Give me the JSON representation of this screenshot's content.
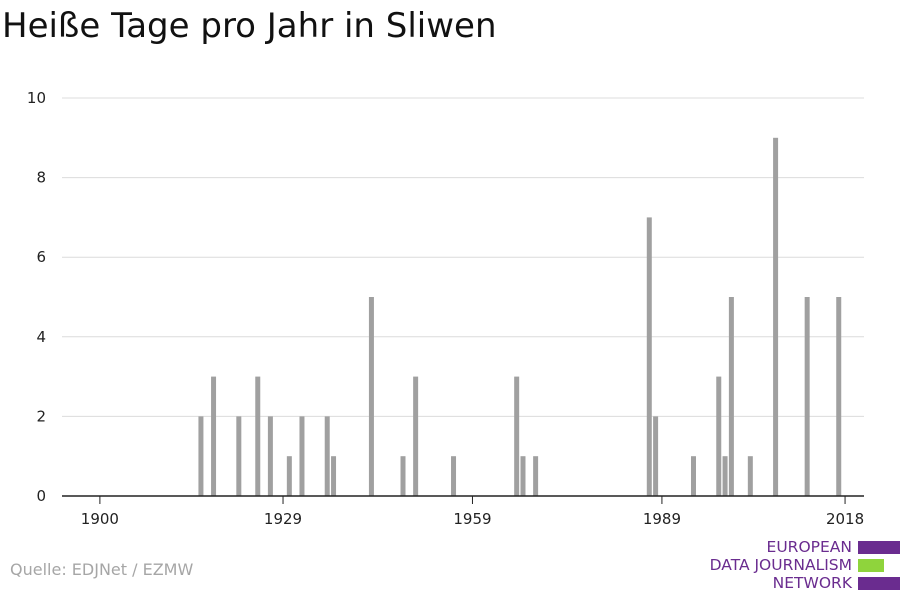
{
  "title": "Heiße Tage pro Jahr in Sliwen",
  "source": "Quelle: EDJNet / EZMW",
  "logo": {
    "lines": [
      "EUROPEAN",
      "DATA JOURNALISM",
      "NETWORK"
    ],
    "colors": [
      "#6a2c8f",
      "#8fd43c",
      "#6a2c8f"
    ]
  },
  "colors": {
    "bar": "#a0a0a0",
    "grid": "#dcdcdc",
    "axis": "#222222"
  },
  "chart_data": {
    "type": "bar",
    "title": "Heiße Tage pro Jahr in Sliwen",
    "xlabel": "",
    "ylabel": "",
    "xlim": [
      1894,
      2021
    ],
    "ylim": [
      0,
      10
    ],
    "x_ticks": [
      1900,
      1929,
      1959,
      1989,
      2018
    ],
    "y_ticks": [
      0,
      2,
      4,
      6,
      8,
      10
    ],
    "grid": true,
    "x": [
      1916,
      1918,
      1922,
      1925,
      1927,
      1930,
      1932,
      1936,
      1937,
      1943,
      1948,
      1950,
      1956,
      1966,
      1967,
      1969,
      1987,
      1988,
      1994,
      1998,
      1999,
      2000,
      2003,
      2007,
      2012,
      2017
    ],
    "values": [
      2,
      3,
      2,
      3,
      2,
      1,
      2,
      2,
      1,
      5,
      1,
      3,
      1,
      3,
      1,
      1,
      7,
      2,
      1,
      3,
      1,
      5,
      1,
      9,
      5,
      5
    ]
  }
}
